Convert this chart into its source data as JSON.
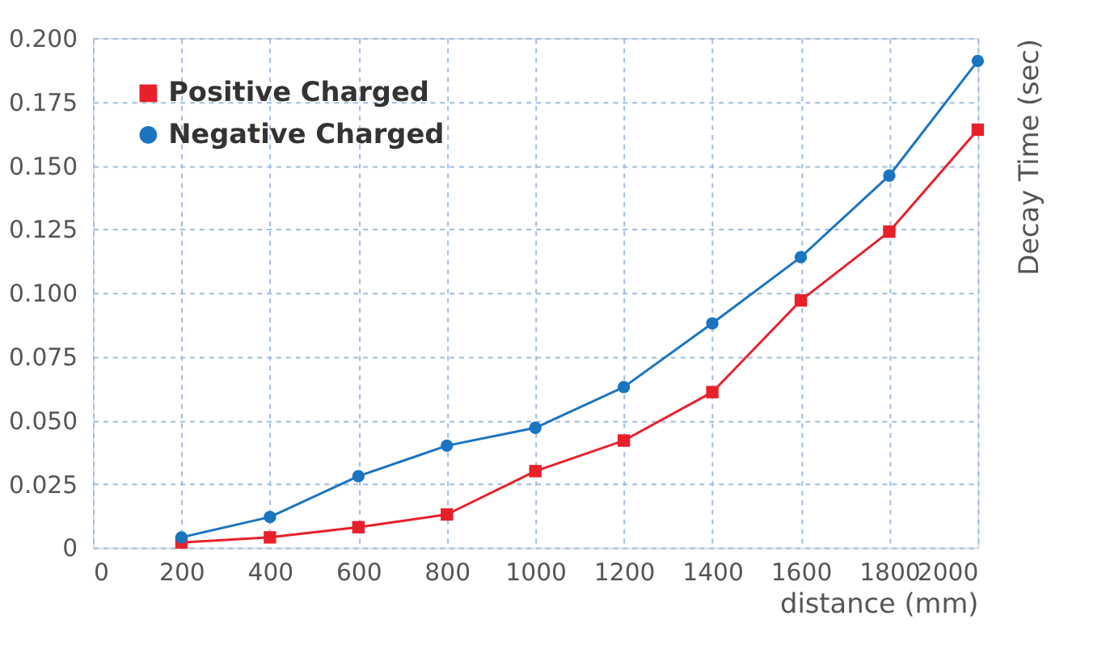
{
  "chart_data": {
    "type": "line",
    "xlabel": "distance (mm)",
    "ylabel": "Decay Time (sec)",
    "x": [
      200,
      400,
      600,
      800,
      1000,
      1200,
      1400,
      1600,
      1800,
      2000
    ],
    "series": [
      {
        "name": "Positive Charged",
        "color": "#e8202a",
        "marker": "square",
        "values": [
          0.002,
          0.004,
          0.008,
          0.013,
          0.03,
          0.042,
          0.061,
          0.097,
          0.124,
          0.164
        ]
      },
      {
        "name": "Negative Charged",
        "color": "#1a74c0",
        "marker": "circle",
        "values": [
          0.004,
          0.012,
          0.028,
          0.04,
          0.047,
          0.063,
          0.088,
          0.114,
          0.146,
          0.191
        ]
      }
    ],
    "xlim": [
      0,
      2000
    ],
    "xticks": [
      0,
      200,
      400,
      600,
      800,
      1000,
      1200,
      1400,
      1600,
      1800,
      2000
    ],
    "ylim": [
      0,
      0.2
    ],
    "yticks": [
      0,
      {
        "value": 0.025,
        "label": "0.025"
      },
      {
        "value": 0.05,
        "label": "0.050"
      },
      {
        "value": 0.075,
        "label": "0.075"
      },
      {
        "value": 0.1,
        "label": "0.100"
      },
      {
        "value": 0.125,
        "label": "0.125"
      },
      {
        "value": 0.15,
        "label": "0.150"
      },
      {
        "value": 0.175,
        "label": "0.175"
      },
      {
        "value": 0.2,
        "label": "0.200"
      }
    ],
    "grid": true,
    "legend": "top left",
    "line_style": "solid"
  }
}
